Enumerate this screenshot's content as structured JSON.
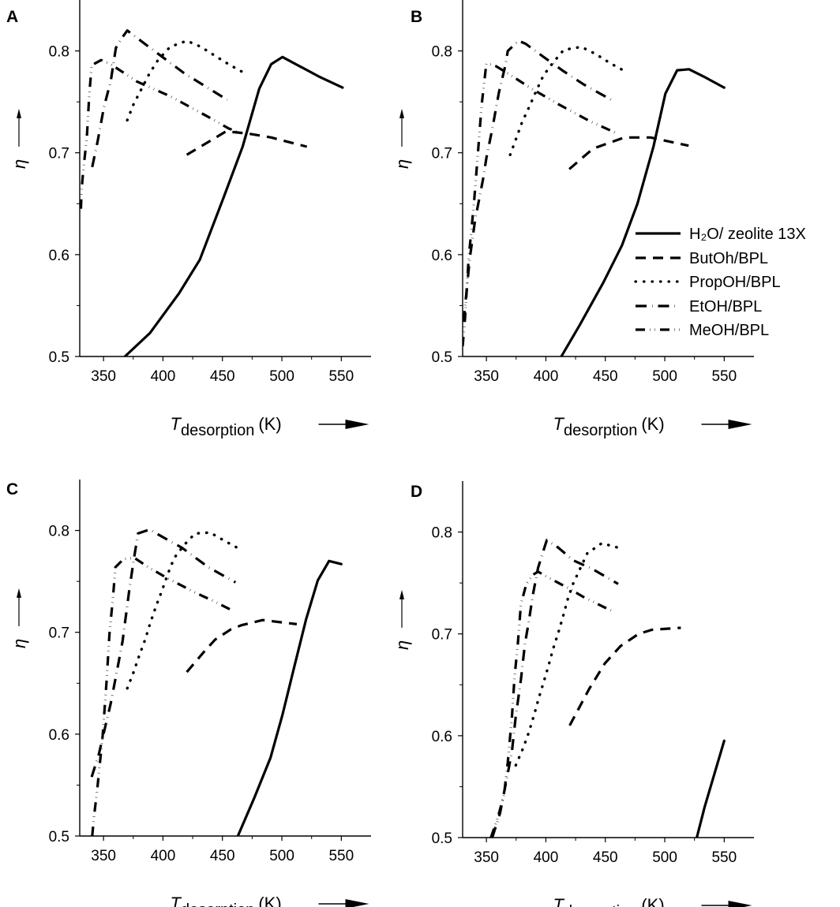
{
  "chart_data": [
    {
      "panel": "A",
      "type": "line",
      "xlabel": {
        "symbol": "T",
        "subscript": "desorption",
        "unit": "(K)"
      },
      "ylabel": "η",
      "xlim": [
        330,
        575
      ],
      "ylim": [
        0.5,
        0.85
      ],
      "xticks": [
        "350",
        "400",
        "450",
        "500",
        "550"
      ],
      "yticks": [
        "0.5",
        "0.6",
        "0.7",
        "0.8"
      ],
      "grid": false,
      "series": [
        {
          "name": "H₂O/ zeolite 13X",
          "style": "solid",
          "x": [
            368,
            389,
            413.5,
            431,
            451,
            467,
            481,
            491,
            500.5,
            531,
            551
          ],
          "y": [
            0.5,
            0.523,
            0.562,
            0.595,
            0.656,
            0.706,
            0.763,
            0.787,
            0.794,
            0.775,
            0.764
          ]
        },
        {
          "name": "ButOh/BPL",
          "style": "dashed",
          "x": [
            420,
            453,
            471,
            491,
            521
          ],
          "y": [
            0.698,
            0.721,
            0.719,
            0.715,
            0.706
          ]
        },
        {
          "name": "PropOH/BPL",
          "style": "dotted",
          "x": [
            370,
            375,
            388.7,
            395.8,
            406,
            420,
            432,
            444,
            456.6,
            469
          ],
          "y": [
            0.732,
            0.747,
            0.778,
            0.791,
            0.804,
            0.81,
            0.804,
            0.795,
            0.786,
            0.778
          ]
        },
        {
          "name": "EtOH/BPL",
          "style": "dash-dot",
          "x": [
            340.5,
            345,
            350.4,
            356,
            360.4,
            365,
            370,
            387,
            418,
            454
          ],
          "y": [
            0.686,
            0.711,
            0.745,
            0.77,
            0.803,
            0.812,
            0.82,
            0.805,
            0.778,
            0.752
          ]
        },
        {
          "name": "MeOH/BPL",
          "style": "dash-dot-dot",
          "x": [
            331,
            331.6,
            333,
            336,
            338,
            340,
            348,
            356,
            378,
            407,
            440,
            455,
            464
          ],
          "y": [
            0.645,
            0.664,
            0.683,
            0.715,
            0.756,
            0.786,
            0.791,
            0.787,
            0.77,
            0.755,
            0.734,
            0.724,
            0.72
          ]
        }
      ]
    },
    {
      "panel": "B",
      "type": "line",
      "xlabel": {
        "symbol": "T",
        "subscript": "desorption",
        "unit": "(K)"
      },
      "ylabel": "η",
      "xlim": [
        330,
        575
      ],
      "ylim": [
        0.5,
        0.85
      ],
      "xticks": [
        "350",
        "400",
        "450",
        "500",
        "550"
      ],
      "yticks": [
        "0.5",
        "0.6",
        "0.7",
        "0.8"
      ],
      "grid": false,
      "legend": "right",
      "series": [
        {
          "name": "H₂O/ zeolite 13X",
          "style": "solid",
          "x": [
            413,
            428.5,
            448.5,
            464,
            477,
            490.5,
            500.5,
            510.4,
            520.4,
            532.5,
            550
          ],
          "y": [
            0.5,
            0.531,
            0.573,
            0.609,
            0.65,
            0.706,
            0.758,
            0.781,
            0.782,
            0.775,
            0.764
          ]
        },
        {
          "name": "ButOh/BPL",
          "style": "dashed",
          "x": [
            419.7,
            439.6,
            466,
            488,
            520
          ],
          "y": [
            0.684,
            0.704,
            0.715,
            0.715,
            0.707
          ]
        },
        {
          "name": "PropOH/BPL",
          "style": "dotted",
          "x": [
            370,
            375,
            380,
            386,
            392,
            398,
            405,
            415,
            429.7,
            441.8,
            454,
            466.6
          ],
          "y": [
            0.698,
            0.714,
            0.73,
            0.745,
            0.761,
            0.776,
            0.787,
            0.801,
            0.804,
            0.797,
            0.788,
            0.78
          ]
        },
        {
          "name": "EtOH/BPL",
          "style": "dash-dot",
          "x": [
            330.8,
            336,
            340.5,
            347,
            350,
            355,
            360.5,
            366,
            368,
            377,
            383,
            397,
            415,
            432,
            458
          ],
          "y": [
            0.534,
            0.596,
            0.634,
            0.673,
            0.695,
            0.724,
            0.759,
            0.786,
            0.8,
            0.81,
            0.807,
            0.795,
            0.78,
            0.767,
            0.75
          ]
        },
        {
          "name": "MeOH/BPL",
          "style": "dash-dot-dot",
          "x": [
            330,
            332,
            335,
            339.5,
            343,
            346,
            350,
            358,
            368,
            388,
            410,
            437,
            458
          ],
          "y": [
            0.51,
            0.537,
            0.595,
            0.65,
            0.702,
            0.747,
            0.788,
            0.785,
            0.778,
            0.763,
            0.748,
            0.731,
            0.72
          ]
        }
      ]
    },
    {
      "panel": "C",
      "type": "line",
      "xlabel": {
        "symbol": "T",
        "subscript": "desorption",
        "unit": "(K)"
      },
      "ylabel": "η",
      "xlim": [
        330,
        575
      ],
      "ylim": [
        0.5,
        0.85
      ],
      "xticks": [
        "350",
        "400",
        "450",
        "500",
        "550"
      ],
      "yticks": [
        "0.5",
        "0.6",
        "0.7",
        "0.8"
      ],
      "grid": false,
      "series": [
        {
          "name": "H₂O/ zeolite 13X",
          "style": "solid",
          "x": [
            463,
            477,
            490.5,
            500.5,
            510.4,
            520.4,
            530.2,
            539.7,
            550
          ],
          "y": [
            0.5,
            0.538,
            0.577,
            0.619,
            0.666,
            0.713,
            0.751,
            0.77,
            0.767
          ]
        },
        {
          "name": "ButOh/BPL",
          "style": "dashed",
          "x": [
            420,
            435.3,
            444,
            457.3,
            466,
            483.8,
            512.5
          ],
          "y": [
            0.661,
            0.682,
            0.693,
            0.703,
            0.707,
            0.712,
            0.708
          ]
        },
        {
          "name": "PropOH/BPL",
          "style": "dotted",
          "x": [
            370,
            375,
            380,
            384.8,
            389.3,
            394.3,
            399.2,
            404.3,
            409.5,
            418,
            427,
            439.7,
            453,
            465.8
          ],
          "y": [
            0.645,
            0.66,
            0.677,
            0.692,
            0.709,
            0.726,
            0.741,
            0.758,
            0.773,
            0.786,
            0.797,
            0.798,
            0.789,
            0.781
          ]
        },
        {
          "name": "EtOH/BPL",
          "style": "dash-dot",
          "x": [
            340,
            346,
            350.4,
            356,
            361.5,
            366,
            371.5,
            375,
            379,
            389,
            396,
            416,
            438,
            461
          ],
          "y": [
            0.558,
            0.58,
            0.602,
            0.63,
            0.663,
            0.691,
            0.74,
            0.768,
            0.797,
            0.801,
            0.796,
            0.783,
            0.764,
            0.749
          ]
        },
        {
          "name": "MeOH/BPL",
          "style": "dash-dot-dot",
          "x": [
            340.5,
            342,
            345,
            349.3,
            352.6,
            355,
            358,
            360,
            367,
            376,
            389,
            404,
            427,
            442,
            459
          ],
          "y": [
            0.5,
            0.519,
            0.549,
            0.599,
            0.652,
            0.699,
            0.735,
            0.764,
            0.772,
            0.773,
            0.763,
            0.753,
            0.739,
            0.731,
            0.721
          ]
        }
      ]
    },
    {
      "panel": "D",
      "type": "line",
      "xlabel": {
        "symbol": "T",
        "subscript": "desorption",
        "unit": "(K)"
      },
      "ylabel": "η",
      "xlim": [
        330,
        575
      ],
      "ylim": [
        0.5,
        0.85
      ],
      "xticks": [
        "350",
        "400",
        "450",
        "500",
        "550"
      ],
      "yticks": [
        "0.5",
        "0.6",
        "0.7",
        "0.8"
      ],
      "grid": false,
      "series": [
        {
          "name": "H₂O/ zeolite 13X",
          "style": "solid",
          "x": [
            526.9,
            533.5,
            550
          ],
          "y": [
            0.5,
            0.53,
            0.595
          ]
        },
        {
          "name": "ButOh/BPL",
          "style": "dashed",
          "x": [
            420,
            436.4,
            449.6,
            462.8,
            478,
            489.2,
            513.5
          ],
          "y": [
            0.61,
            0.646,
            0.671,
            0.688,
            0.7,
            0.704,
            0.706
          ]
        },
        {
          "name": "PropOH/BPL",
          "style": "dotted",
          "x": [
            374.7,
            380.9,
            385.6,
            390,
            394,
            398,
            402.3,
            406,
            410.4,
            414.4,
            418.4,
            422.8,
            434.8,
            447,
            459.6
          ],
          "y": [
            0.571,
            0.588,
            0.603,
            0.62,
            0.637,
            0.652,
            0.669,
            0.685,
            0.701,
            0.717,
            0.734,
            0.749,
            0.779,
            0.789,
            0.785
          ]
        },
        {
          "name": "EtOH/BPL",
          "style": "dash-dot",
          "x": [
            354.9,
            361.5,
            368,
            371.5,
            374.7,
            379,
            382.4,
            385.8,
            389,
            393.5,
            397.2,
            400.8,
            410,
            423.3,
            438.8,
            460.8
          ],
          "y": [
            0.5,
            0.524,
            0.563,
            0.585,
            0.619,
            0.655,
            0.69,
            0.713,
            0.738,
            0.765,
            0.779,
            0.792,
            0.785,
            0.772,
            0.764,
            0.749
          ]
        },
        {
          "name": "MeOH/BPL",
          "style": "dash-dot-dot",
          "x": [
            353.8,
            359.4,
            364.8,
            368,
            371.5,
            373.6,
            376.5,
            379,
            383.6,
            389,
            393.5,
            401,
            418.8,
            432,
            456.3
          ],
          "y": [
            0.5,
            0.519,
            0.542,
            0.574,
            0.619,
            0.657,
            0.691,
            0.729,
            0.749,
            0.758,
            0.761,
            0.756,
            0.745,
            0.736,
            0.722
          ]
        }
      ]
    }
  ]
}
